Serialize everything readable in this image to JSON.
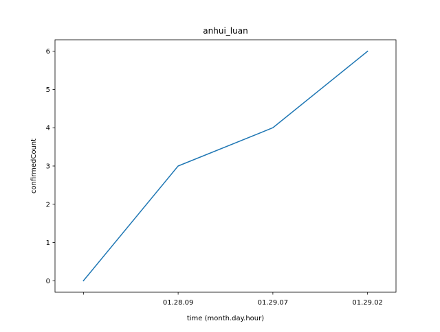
{
  "chart_data": {
    "type": "line",
    "title": "anhui_luan",
    "xlabel": "time (month.day.hour)",
    "ylabel": "confirmedCount",
    "categories": [
      "",
      "01.28.09",
      "01.29.07",
      "01.29.02"
    ],
    "series": [
      {
        "values": [
          0,
          3,
          4,
          6
        ],
        "color": "#1f77b4"
      }
    ],
    "yticks": [
      0,
      1,
      2,
      3,
      4,
      5,
      6
    ],
    "ylim": [
      -0.3,
      6.3
    ],
    "grid": false,
    "legend": "none"
  }
}
